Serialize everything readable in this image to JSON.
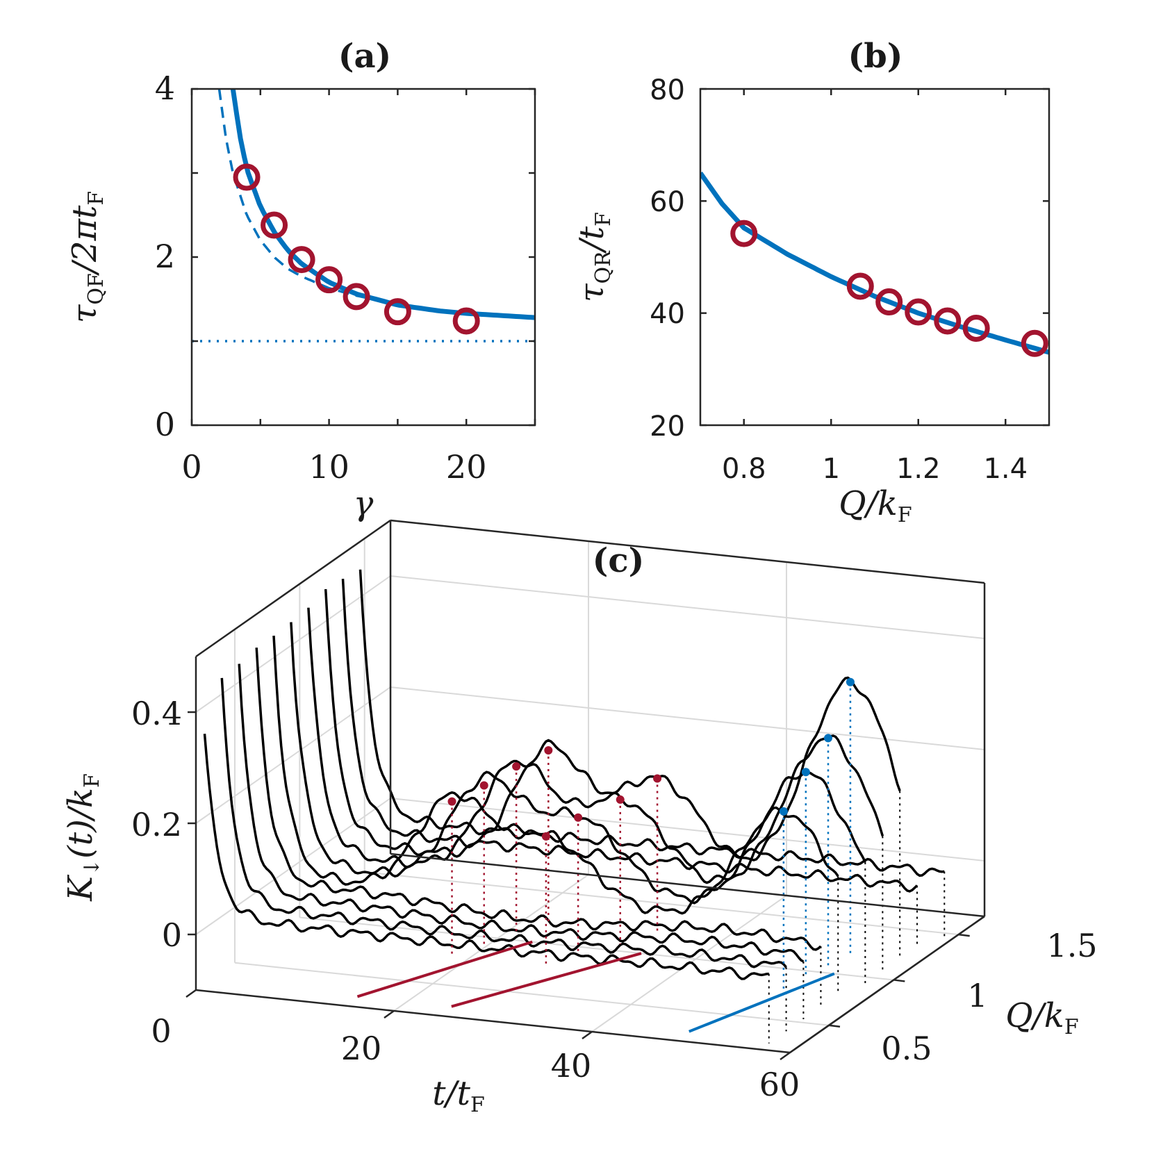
{
  "colors": {
    "model": "#0072bd",
    "data": "#a2142f",
    "trace": "#000000",
    "axis": "#262626",
    "grid": "#d9d9d9"
  },
  "panels": {
    "a": {
      "title": "(a)",
      "xlabel": "γ",
      "ylabel_main": "τ",
      "ylabel_sub": "QF",
      "ylabel_rest": "/2πt",
      "ylabel_sub2": "F",
      "xticks": [
        "0",
        "10",
        "20"
      ],
      "yticks": [
        "0",
        "2",
        "4"
      ]
    },
    "b": {
      "title": "(b)",
      "xlabel_main": "Q/k",
      "xlabel_sub": "F",
      "ylabel_main": "τ",
      "ylabel_sub": "QR",
      "ylabel_rest": "/t",
      "ylabel_sub2": "F",
      "xticks": [
        "0.8",
        "1",
        "1.2",
        "1.4"
      ],
      "yticks": [
        "20",
        "40",
        "60",
        "80"
      ]
    },
    "c": {
      "title": "(c)",
      "xlabel_main": "t/t",
      "xlabel_sub": "F",
      "ylabel_main": "K",
      "ylabel_sub": "↓",
      "ylabel_rest": "(t)/k",
      "ylabel_sub2": "F",
      "qlabel_main": "Q/k",
      "qlabel_sub": "F",
      "tticks": [
        "0",
        "20",
        "40",
        "60"
      ],
      "kticks": [
        "0",
        "0.2",
        "0.4"
      ],
      "qticks": [
        "0.5",
        "1",
        "1.5"
      ]
    }
  },
  "chart_data": [
    {
      "panel": "a",
      "type": "scatter",
      "xlim": [
        0,
        25
      ],
      "ylim": [
        0,
        4
      ],
      "grid": false,
      "series": [
        {
          "style": "circles",
          "x": [
            4,
            6,
            8,
            10,
            12,
            15,
            20
          ],
          "y": [
            2.95,
            2.38,
            1.97,
            1.73,
            1.53,
            1.35,
            1.24
          ]
        },
        {
          "style": "solid-line",
          "x": [
            3,
            3.5,
            4,
            5,
            6,
            7,
            8,
            10,
            12,
            15,
            18,
            20,
            22,
            25
          ],
          "y": [
            4.0,
            3.45,
            3.05,
            2.6,
            2.3,
            2.08,
            1.92,
            1.7,
            1.56,
            1.43,
            1.36,
            1.33,
            1.31,
            1.28
          ]
        },
        {
          "style": "dashed-line",
          "x": [
            2,
            2.5,
            3,
            4,
            5,
            6,
            7,
            8,
            10,
            12,
            15
          ],
          "y": [
            4.0,
            3.4,
            3.0,
            2.5,
            2.2,
            2.0,
            1.86,
            1.77,
            1.63,
            1.54,
            1.45
          ]
        },
        {
          "style": "dotted-line",
          "x": [
            0,
            25
          ],
          "y": [
            1.0,
            1.0
          ]
        }
      ]
    },
    {
      "panel": "b",
      "type": "scatter",
      "xlim": [
        0.7,
        1.5
      ],
      "ylim": [
        20,
        80
      ],
      "grid": false,
      "series": [
        {
          "style": "circles",
          "x": [
            0.8,
            1.067,
            1.133,
            1.2,
            1.267,
            1.333,
            1.467
          ],
          "y": [
            54.2,
            44.8,
            42.0,
            40.2,
            38.6,
            37.3,
            34.6
          ]
        },
        {
          "style": "solid-line",
          "x": [
            0.7,
            0.75,
            0.8,
            0.9,
            1.0,
            1.1,
            1.2,
            1.3,
            1.4,
            1.5
          ],
          "y": [
            65,
            59.5,
            55.2,
            50.5,
            46.5,
            43.0,
            40.0,
            37.5,
            35.2,
            33.0
          ]
        }
      ]
    },
    {
      "panel": "c",
      "type": "line",
      "xlim": [
        0,
        60
      ],
      "ylim": [
        -0.1,
        0.4
      ],
      "qlim": [
        0.2,
        1.7
      ],
      "grid": true,
      "q_values": [
        0.267,
        0.4,
        0.533,
        0.667,
        0.8,
        0.933,
        1.067,
        1.2,
        1.333,
        1.467
      ],
      "t_start_K": [
        0.35,
        0.42,
        0.43,
        0.44,
        0.44,
        0.45,
        0.45,
        0.45,
        0.45,
        0.45
      ],
      "peak1": {
        "q": [
          0.8,
          0.933,
          1.067,
          1.2
        ],
        "t": [
          18.0,
          19.5,
          21.0,
          22.5
        ],
        "K": [
          0.175,
          0.185,
          0.2,
          0.21
        ]
      },
      "peak2": {
        "q": [
          0.8,
          0.933,
          1.067,
          1.2
        ],
        "t": [
          27.5,
          29.0,
          31.5,
          33.5
        ],
        "K": [
          0.13,
          0.145,
          0.16,
          0.18
        ]
      },
      "peak3": {
        "q": [
          0.8,
          0.933,
          1.067,
          1.2
        ],
        "t": [
          51.5,
          52.0,
          52.5,
          53.0
        ],
        "K": [
          0.22,
          0.27,
          0.31,
          0.39
        ]
      }
    }
  ]
}
